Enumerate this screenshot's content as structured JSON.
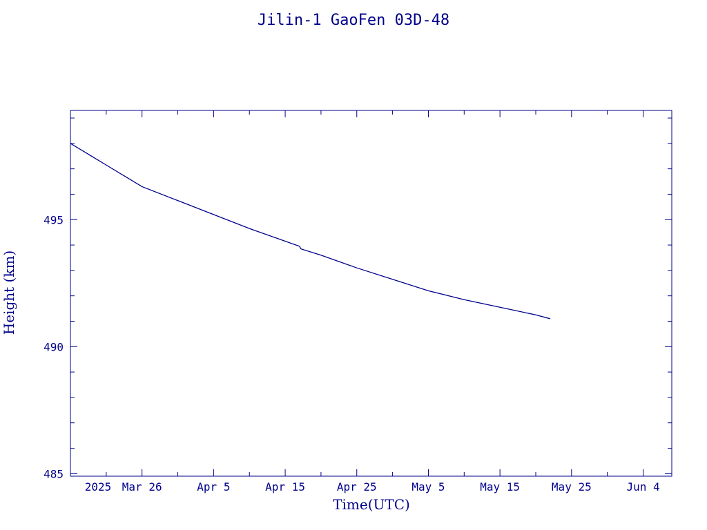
{
  "chart_data": {
    "type": "line",
    "title": "Jilin-1 GaoFen 03D-48",
    "xlabel": "Time(UTC)",
    "ylabel": "Height (km)",
    "x_range": [
      "2025-03-16",
      "2025-06-08"
    ],
    "ylim": [
      484.9,
      499.3
    ],
    "x_ticks": [
      {
        "date": "2025-03-16",
        "label": "2025"
      },
      {
        "date": "2025-03-26",
        "label": "Mar 26"
      },
      {
        "date": "2025-04-05",
        "label": "Apr  5"
      },
      {
        "date": "2025-04-15",
        "label": "Apr 15"
      },
      {
        "date": "2025-04-25",
        "label": "Apr 25"
      },
      {
        "date": "2025-05-05",
        "label": "May  5"
      },
      {
        "date": "2025-05-15",
        "label": "May 15"
      },
      {
        "date": "2025-05-25",
        "label": "May 25"
      },
      {
        "date": "2025-06-04",
        "label": "Jun  4"
      }
    ],
    "y_ticks": [
      485,
      490,
      495
    ],
    "series": [
      {
        "x": [
          "2025-03-16",
          "2025-03-21",
          "2025-03-26",
          "2025-03-31",
          "2025-04-05",
          "2025-04-10",
          "2025-04-15",
          "2025-04-17",
          "2025-04-17",
          "2025-04-20",
          "2025-04-25",
          "2025-04-30",
          "2025-05-05",
          "2025-05-10",
          "2025-05-15",
          "2025-05-20",
          "2025-05-22"
        ],
        "y": [
          498.0,
          497.15,
          496.3,
          495.75,
          495.2,
          494.65,
          494.15,
          493.95,
          493.85,
          493.6,
          493.1,
          492.65,
          492.2,
          491.85,
          491.55,
          491.25,
          491.1
        ]
      }
    ],
    "grid": false
  }
}
